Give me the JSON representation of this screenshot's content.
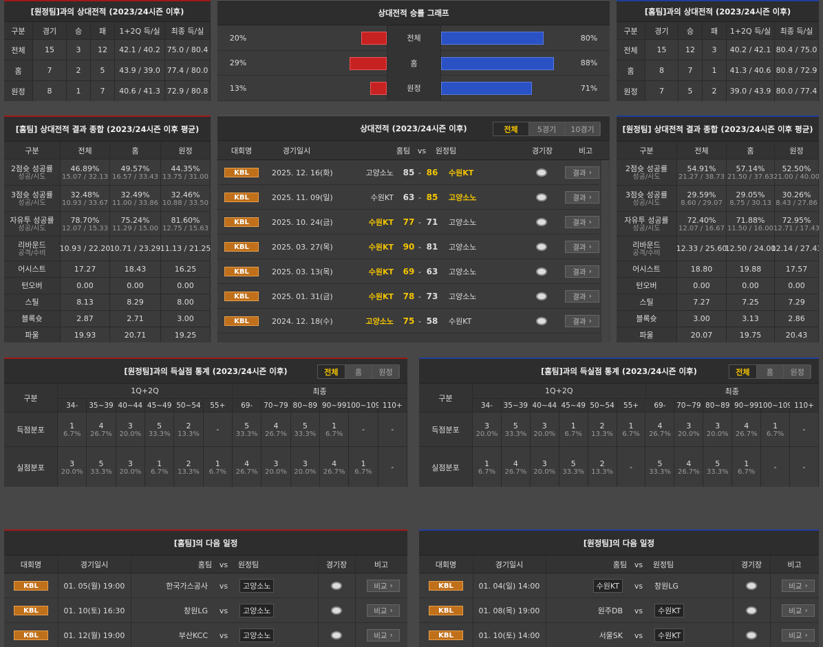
{
  "away_h2h": {
    "title": "[원정팀]과의 상대전적 (2023/24시즌 이후)",
    "headers": [
      "구분",
      "경기",
      "승",
      "패",
      "1+2Q 득/실",
      "최종 득/실"
    ],
    "rows": [
      [
        "전체",
        "15",
        "3",
        "12",
        "42.1 / 40.2",
        "75.0 / 80.4"
      ],
      [
        "홈",
        "7",
        "2",
        "5",
        "43.9 / 39.0",
        "77.4 / 80.0"
      ],
      [
        "원정",
        "8",
        "1",
        "7",
        "40.6 / 41.3",
        "72.9 / 80.8"
      ]
    ]
  },
  "winrate": {
    "title": "상대전적 승률 그래프",
    "rows": [
      {
        "label": "전체",
        "away": {
          "value": 20,
          "label": "20%"
        },
        "home": {
          "value": 80,
          "label": "80%"
        }
      },
      {
        "label": "홈",
        "away": {
          "value": 29,
          "label": "29%"
        },
        "home": {
          "value": 88,
          "label": "88%"
        }
      },
      {
        "label": "원정",
        "away": {
          "value": 13,
          "label": "13%"
        },
        "home": {
          "value": 71,
          "label": "71%"
        }
      }
    ]
  },
  "home_h2h": {
    "title": "[홈팀]과의 상대전적 (2023/24시즌 이후)",
    "headers": [
      "구분",
      "경기",
      "승",
      "패",
      "1+2Q 득/실",
      "최종 득/실"
    ],
    "rows": [
      [
        "전체",
        "15",
        "12",
        "3",
        "40.2 / 42.1",
        "80.4 / 75.0"
      ],
      [
        "홈",
        "8",
        "7",
        "1",
        "41.3 / 40.6",
        "80.8 / 72.9"
      ],
      [
        "원정",
        "7",
        "5",
        "2",
        "39.0 / 43.9",
        "80.0 / 77.4"
      ]
    ]
  },
  "home_summary": {
    "title": "[홈팀] 상대전적 결과 종합 (2023/24시즌 이후 평균)",
    "headers": [
      "구분",
      "전체",
      "홈",
      "원정"
    ],
    "rows": [
      {
        "label": "2점슛 성공률",
        "sublabel": "성공/시도",
        "cells": [
          {
            "main": "46.89%",
            "sub": "15.07 / 32.13"
          },
          {
            "main": "49.57%",
            "sub": "16.57 / 33.43"
          },
          {
            "main": "44.35%",
            "sub": "13.75 / 31.00"
          }
        ]
      },
      {
        "label": "3점슛 성공률",
        "sublabel": "성공/시도",
        "cells": [
          {
            "main": "32.48%",
            "sub": "10.93 / 33.67"
          },
          {
            "main": "32.49%",
            "sub": "11.00 / 33.86"
          },
          {
            "main": "32.46%",
            "sub": "10.88 / 33.50"
          }
        ]
      },
      {
        "label": "자유투 성공률",
        "sublabel": "성공/시도",
        "cells": [
          {
            "main": "78.70%",
            "sub": "12.07 / 15.33"
          },
          {
            "main": "75.24%",
            "sub": "11.29 / 15.00"
          },
          {
            "main": "81.60%",
            "sub": "12.75 / 15.63"
          }
        ]
      },
      {
        "label": "리바운드",
        "sublabel": "공격/수비",
        "cells": [
          {
            "main": "10.93 / 22.20"
          },
          {
            "main": "10.71 / 23.29"
          },
          {
            "main": "11.13 / 21.25"
          }
        ]
      },
      {
        "label": "어시스트",
        "cells": [
          {
            "main": "17.27"
          },
          {
            "main": "18.43"
          },
          {
            "main": "16.25"
          }
        ]
      },
      {
        "label": "턴오버",
        "cells": [
          {
            "main": "0.00"
          },
          {
            "main": "0.00"
          },
          {
            "main": "0.00"
          }
        ]
      },
      {
        "label": "스틸",
        "cells": [
          {
            "main": "8.13"
          },
          {
            "main": "8.29"
          },
          {
            "main": "8.00"
          }
        ]
      },
      {
        "label": "블록슛",
        "cells": [
          {
            "main": "2.87"
          },
          {
            "main": "2.71"
          },
          {
            "main": "3.00"
          }
        ]
      },
      {
        "label": "파울",
        "cells": [
          {
            "main": "19.93"
          },
          {
            "main": "20.71"
          },
          {
            "main": "19.25"
          }
        ]
      }
    ]
  },
  "away_summary": {
    "title": "[원정팀] 상대전적 결과 종합 (2023/24시즌 이후 평균)",
    "headers": [
      "구분",
      "전체",
      "홈",
      "원정"
    ],
    "rows": [
      {
        "label": "2점슛 성공률",
        "sublabel": "성공/시도",
        "cells": [
          {
            "main": "54.91%",
            "sub": "21.27 / 38.73"
          },
          {
            "main": "57.14%",
            "sub": "21.50 / 37.63"
          },
          {
            "main": "52.50%",
            "sub": "21.00 / 40.00"
          }
        ]
      },
      {
        "label": "3점슛 성공률",
        "sublabel": "성공/시도",
        "cells": [
          {
            "main": "29.59%",
            "sub": "8.60 / 29.07"
          },
          {
            "main": "29.05%",
            "sub": "8.75 / 30.13"
          },
          {
            "main": "30.26%",
            "sub": "8.43 / 27.86"
          }
        ]
      },
      {
        "label": "자유투 성공률",
        "sublabel": "성공/시도",
        "cells": [
          {
            "main": "72.40%",
            "sub": "12.07 / 16.67"
          },
          {
            "main": "71.88%",
            "sub": "11.50 / 16.00"
          },
          {
            "main": "72.95%",
            "sub": "12.71 / 17.43"
          }
        ]
      },
      {
        "label": "리바운드",
        "sublabel": "공격/수비",
        "cells": [
          {
            "main": "12.33 / 25.60"
          },
          {
            "main": "12.50 / 24.00"
          },
          {
            "main": "12.14 / 27.43"
          }
        ]
      },
      {
        "label": "어시스트",
        "cells": [
          {
            "main": "18.80"
          },
          {
            "main": "19.88"
          },
          {
            "main": "17.57"
          }
        ]
      },
      {
        "label": "턴오버",
        "cells": [
          {
            "main": "0.00"
          },
          {
            "main": "0.00"
          },
          {
            "main": "0.00"
          }
        ]
      },
      {
        "label": "스틸",
        "cells": [
          {
            "main": "7.27"
          },
          {
            "main": "7.25"
          },
          {
            "main": "7.29"
          }
        ]
      },
      {
        "label": "블록슛",
        "cells": [
          {
            "main": "3.00"
          },
          {
            "main": "3.13"
          },
          {
            "main": "2.86"
          }
        ]
      },
      {
        "label": "파울",
        "cells": [
          {
            "main": "20.07"
          },
          {
            "main": "19.75"
          },
          {
            "main": "20.43"
          }
        ]
      }
    ]
  },
  "h2h_games": {
    "title": "상대전적 (2023/24시즌 이후)",
    "tabs": [
      "전체",
      "5경기",
      "10경기"
    ],
    "active_tab": 0,
    "headers": [
      "대회명",
      "경기일시",
      "홈팀",
      "vs",
      "원정팀",
      "경기장",
      "비고"
    ],
    "separator": "-",
    "rows": [
      {
        "league": "KBL",
        "date": "2025. 12. 16(화)",
        "home": "고양소노",
        "home_score": 85,
        "away_score": 86,
        "away": "수원KT",
        "winner": "away",
        "note": "결과"
      },
      {
        "league": "KBL",
        "date": "2025. 11. 09(일)",
        "home": "수원KT",
        "home_score": 63,
        "away_score": 85,
        "away": "고양소노",
        "winner": "away",
        "note": "결과"
      },
      {
        "league": "KBL",
        "date": "2025. 10. 24(금)",
        "home": "수원KT",
        "home_score": 77,
        "away_score": 71,
        "away": "고양소노",
        "winner": "home",
        "note": "결과"
      },
      {
        "league": "KBL",
        "date": "2025. 03. 27(목)",
        "home": "수원KT",
        "home_score": 90,
        "away_score": 81,
        "away": "고양소노",
        "winner": "home",
        "note": "결과"
      },
      {
        "league": "KBL",
        "date": "2025. 03. 13(목)",
        "home": "수원KT",
        "home_score": 69,
        "away_score": 63,
        "away": "고양소노",
        "winner": "home",
        "note": "결과"
      },
      {
        "league": "KBL",
        "date": "2025. 01. 31(금)",
        "home": "수원KT",
        "home_score": 78,
        "away_score": 73,
        "away": "고양소노",
        "winner": "home",
        "note": "결과"
      },
      {
        "league": "KBL",
        "date": "2024. 12. 18(수)",
        "home": "고양소노",
        "home_score": 75,
        "away_score": 58,
        "away": "수원KT",
        "winner": "home",
        "note": "결과"
      }
    ]
  },
  "away_stats": {
    "title": "[원정팀]과의 득실점 통계 (2023/24시즌 이후)",
    "tabs": [
      "전체",
      "홈",
      "원정"
    ],
    "active_tab": 0,
    "corner": "구분",
    "groups": [
      "1Q+2Q",
      "최종"
    ],
    "ranges": [
      "34-",
      "35~39",
      "40~44",
      "45~49",
      "50~54",
      "55+",
      "69-",
      "70~79",
      "80~89",
      "90~99",
      "100~109",
      "110+"
    ],
    "rows": [
      {
        "label": "득점분포",
        "cells": [
          {
            "n": 1,
            "p": "6.7%"
          },
          {
            "n": 4,
            "p": "26.7%"
          },
          {
            "n": 3,
            "p": "20.0%"
          },
          {
            "n": 5,
            "p": "33.3%"
          },
          {
            "n": 2,
            "p": "13.3%"
          },
          {
            "n": "-"
          },
          {
            "n": 5,
            "p": "33.3%"
          },
          {
            "n": 4,
            "p": "26.7%"
          },
          {
            "n": 5,
            "p": "33.3%"
          },
          {
            "n": 1,
            "p": "6.7%"
          },
          {
            "n": "-"
          },
          {
            "n": "-"
          }
        ]
      },
      {
        "label": "실점분포",
        "cells": [
          {
            "n": 3,
            "p": "20.0%"
          },
          {
            "n": 5,
            "p": "33.3%"
          },
          {
            "n": 3,
            "p": "20.0%"
          },
          {
            "n": 1,
            "p": "6.7%"
          },
          {
            "n": 2,
            "p": "13.3%"
          },
          {
            "n": 1,
            "p": "6.7%"
          },
          {
            "n": 4,
            "p": "26.7%"
          },
          {
            "n": 3,
            "p": "20.0%"
          },
          {
            "n": 3,
            "p": "20.0%"
          },
          {
            "n": 4,
            "p": "26.7%"
          },
          {
            "n": 1,
            "p": "6.7%"
          },
          {
            "n": "-"
          }
        ]
      }
    ]
  },
  "home_stats": {
    "title": "[홈팀]과의 득실점 통계 (2023/24시즌 이후)",
    "tabs": [
      "전체",
      "홈",
      "원정"
    ],
    "active_tab": 0,
    "corner": "구분",
    "groups": [
      "1Q+2Q",
      "최종"
    ],
    "ranges": [
      "34-",
      "35~39",
      "40~44",
      "45~49",
      "50~54",
      "55+",
      "69-",
      "70~79",
      "80~89",
      "90~99",
      "100~109",
      "110+"
    ],
    "rows": [
      {
        "label": "득점분포",
        "cells": [
          {
            "n": 3,
            "p": "20.0%"
          },
          {
            "n": 5,
            "p": "33.3%"
          },
          {
            "n": 3,
            "p": "20.0%"
          },
          {
            "n": 1,
            "p": "6.7%"
          },
          {
            "n": 2,
            "p": "13.3%"
          },
          {
            "n": 1,
            "p": "6.7%"
          },
          {
            "n": 4,
            "p": "26.7%"
          },
          {
            "n": 3,
            "p": "20.0%"
          },
          {
            "n": 3,
            "p": "20.0%"
          },
          {
            "n": 4,
            "p": "26.7%"
          },
          {
            "n": 1,
            "p": "6.7%"
          },
          {
            "n": "-"
          }
        ]
      },
      {
        "label": "실점분포",
        "cells": [
          {
            "n": 1,
            "p": "6.7%"
          },
          {
            "n": 4,
            "p": "26.7%"
          },
          {
            "n": 3,
            "p": "20.0%"
          },
          {
            "n": 5,
            "p": "33.3%"
          },
          {
            "n": 2,
            "p": "13.3%"
          },
          {
            "n": "-"
          },
          {
            "n": 5,
            "p": "33.3%"
          },
          {
            "n": 4,
            "p": "26.7%"
          },
          {
            "n": 5,
            "p": "33.3%"
          },
          {
            "n": 1,
            "p": "6.7%"
          },
          {
            "n": "-"
          },
          {
            "n": "-"
          }
        ]
      }
    ]
  },
  "home_next": {
    "title": "[홈팀]의 다음 일정",
    "headers": [
      "대회명",
      "경기일시",
      "홈팀",
      "vs",
      "원정팀",
      "경기장",
      "비고"
    ],
    "vs": "vs",
    "rows": [
      {
        "league": "KBL",
        "date": "01. 05(월) 19:00",
        "home": "한국가스공사",
        "away": "고양소노",
        "focus": "away",
        "note": "비교"
      },
      {
        "league": "KBL",
        "date": "01. 10(토) 16:30",
        "home": "창원LG",
        "away": "고양소노",
        "focus": "away",
        "note": "비교"
      },
      {
        "league": "KBL",
        "date": "01. 12(월) 19:00",
        "home": "부산KCC",
        "away": "고양소노",
        "focus": "away",
        "note": "비교"
      }
    ]
  },
  "away_next": {
    "title": "[원정팀]의 다음 일정",
    "headers": [
      "대회명",
      "경기일시",
      "홈팀",
      "vs",
      "원정팀",
      "경기장",
      "비고"
    ],
    "vs": "vs",
    "rows": [
      {
        "league": "KBL",
        "date": "01. 04(일) 14:00",
        "home": "수원KT",
        "away": "창원LG",
        "focus": "home",
        "note": "비교"
      },
      {
        "league": "KBL",
        "date": "01. 08(목) 19:00",
        "home": "원주DB",
        "away": "수원KT",
        "focus": "away",
        "note": "비교"
      },
      {
        "league": "KBL",
        "date": "01. 10(토) 14:00",
        "home": "서울SK",
        "away": "수원KT",
        "focus": "away",
        "note": "비교"
      }
    ]
  }
}
